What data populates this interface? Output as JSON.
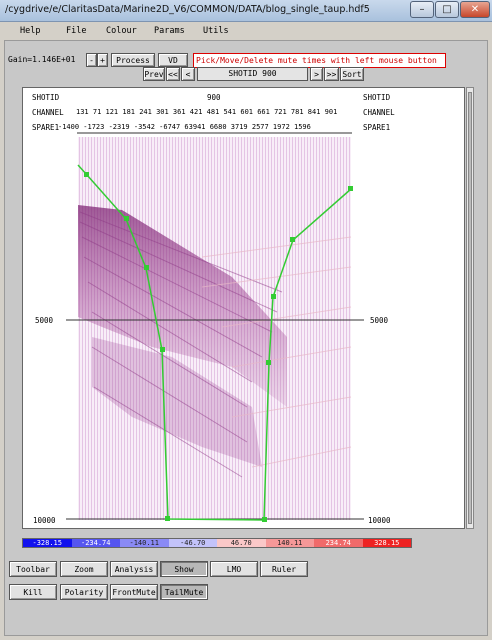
{
  "window": {
    "title": "/cygdrive/e/ClaritasData/Marine2D_V6/COMMON/DATA/blog_single_taup.hdf5",
    "minimize": "–",
    "maximize": "□",
    "close": "✕"
  },
  "menu": {
    "items": [
      "Help",
      "File",
      "Colour",
      "Params",
      "Utils"
    ]
  },
  "toolbar": {
    "gain_label": "Gain=1.146E+01",
    "gain_down": "-",
    "gain_up": "+",
    "process": "Process",
    "vd": "VD",
    "message": "Pick/Move/Delete mute times with left mouse button",
    "prev": "Prev",
    "first": "<<",
    "back": "<",
    "shot_value": "SHOTID 900",
    "fwd": ">",
    "last": ">>",
    "sort": "Sort"
  },
  "plot": {
    "left_header": [
      "SHOTID",
      "CHANNEL",
      "SPARE1"
    ],
    "right_header": [
      "SHOTID",
      "CHANNEL",
      "SPARE1"
    ],
    "shotid_value": "900",
    "channel_values": "131 71 121 181 241 301 361 421 481 541 601 661 721 781 841 901",
    "spare1_values": "-1400 -1723 -2319 -3542 -6747 63941 6680 3719 2577 1972 1596",
    "time_labels": {
      "mid": "5000",
      "bottom": "10000"
    }
  },
  "colorbar": {
    "labels": [
      "-328.15",
      "-234.74",
      "-140.11",
      "-46.70",
      "46.70",
      "140.11",
      "234.74",
      "328.15"
    ],
    "colors": [
      "#1111ee",
      "#5555f0",
      "#8a8af5",
      "#c3c3fa",
      "#fac8c8",
      "#f59898",
      "#f06a6a",
      "#ee2222"
    ]
  },
  "tools_row1": [
    "Toolbar",
    "Zoom",
    "Analysis",
    "Show",
    "LMO",
    "Ruler"
  ],
  "tools_row2": [
    "Kill",
    "Polarity",
    "FrontMute",
    "TailMute"
  ],
  "active": {
    "row1": "Show",
    "row2": "TailMute"
  }
}
